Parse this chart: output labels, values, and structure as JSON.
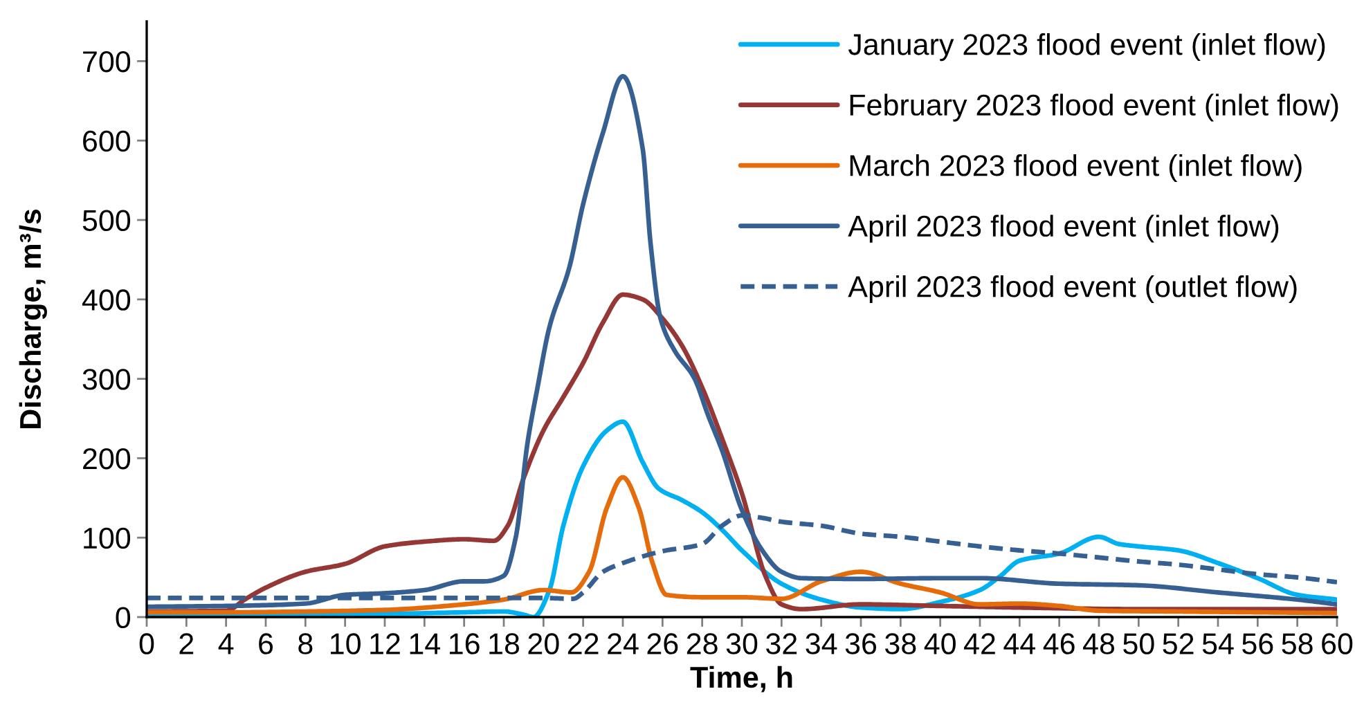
{
  "chart_data": {
    "type": "line",
    "xlabel": "Time, h",
    "ylabel": "Discharge, m³/s",
    "xlim": [
      0,
      60
    ],
    "xticks": [
      0,
      2,
      4,
      6,
      8,
      10,
      12,
      14,
      16,
      18,
      20,
      22,
      24,
      26,
      28,
      30,
      32,
      34,
      36,
      38,
      40,
      42,
      44,
      46,
      48,
      50,
      52,
      54,
      56,
      58,
      60
    ],
    "ylim": [
      0,
      750
    ],
    "yticks": [
      0,
      100,
      200,
      300,
      400,
      500,
      600,
      700
    ],
    "legend": "top right",
    "series": [
      {
        "name": "January 2023 flood event (inlet flow)",
        "color": "#00b0f0",
        "line_style": "solid",
        "x": [
          0,
          4,
          8,
          12,
          16,
          18,
          19,
          19.5,
          20.3,
          21,
          22,
          23.2,
          24,
          25,
          25.8,
          27,
          28,
          29,
          30,
          32,
          34,
          36,
          38,
          40,
          42,
          43,
          44,
          46,
          48,
          49,
          50,
          52,
          54,
          56,
          58,
          60
        ],
        "values": [
          2,
          2,
          3,
          4,
          6,
          7,
          3,
          0,
          34,
          115,
          190,
          235,
          246,
          195,
          162,
          147,
          132,
          110,
          84,
          42,
          22,
          12,
          10,
          19,
          34,
          51,
          71,
          80,
          101,
          92,
          89,
          84,
          68,
          49,
          28,
          22
        ]
      },
      {
        "name": "February 2023 flood event (inlet flow)",
        "color": "#953735",
        "line_style": "solid",
        "x": [
          0,
          4,
          5,
          6,
          8,
          10,
          12,
          14,
          16,
          17.5,
          18.2,
          19,
          20,
          21,
          22,
          23,
          24,
          25,
          26,
          27,
          28,
          29,
          30,
          31.2,
          32,
          33,
          36,
          40,
          44,
          50,
          60
        ],
        "values": [
          7,
          8,
          23,
          37,
          57,
          67,
          89,
          95,
          98,
          96,
          115,
          175,
          235,
          277,
          320,
          371,
          406,
          400,
          376,
          341,
          289,
          225,
          156,
          51,
          16,
          10,
          16,
          14,
          12,
          10,
          10
        ]
      },
      {
        "name": "March 2023 flood event (inlet flow)",
        "color": "#e46c0a",
        "line_style": "solid",
        "x": [
          0,
          4,
          8,
          12,
          16,
          18,
          20,
          21.4,
          22.3,
          23.2,
          24,
          24.8,
          25.5,
          26.2,
          28,
          30,
          32,
          34,
          36,
          38,
          40,
          42,
          44,
          46,
          48,
          52,
          56,
          60
        ],
        "values": [
          6,
          6,
          7,
          9,
          16,
          22,
          34,
          31,
          57,
          138,
          176,
          138,
          68,
          28,
          25,
          25,
          23,
          45,
          57,
          42,
          31,
          16,
          17,
          14,
          8,
          7,
          6,
          5
        ]
      },
      {
        "name": "April 2023 flood event (inlet flow)",
        "color": "#376092",
        "line_style": "solid",
        "x": [
          0,
          4,
          8,
          10,
          12,
          14,
          16,
          17,
          18,
          18.6,
          19.2,
          19.7,
          20.3,
          21.3,
          22,
          23,
          24,
          25,
          25.4,
          25.9,
          26.6,
          27.6,
          28.3,
          29,
          30,
          31,
          32,
          33,
          36,
          40,
          42,
          46,
          50,
          54,
          58,
          60
        ],
        "values": [
          13,
          14,
          17,
          28,
          30,
          34,
          45,
          45,
          52,
          100,
          220,
          289,
          365,
          440,
          520,
          610,
          681,
          590,
          470,
          376,
          336,
          301,
          254,
          210,
          135,
          85,
          57,
          49,
          48,
          49,
          49,
          42,
          40,
          31,
          22,
          16
        ]
      },
      {
        "name": "April 2023 flood event (outlet flow)",
        "color": "#376092",
        "line_style": "dashed",
        "x": [
          0,
          4,
          8,
          12,
          16,
          20,
          21.5,
          22,
          23,
          24,
          26,
          28,
          29,
          30,
          31,
          32,
          34,
          36,
          38,
          40,
          42,
          44,
          46,
          48,
          50,
          52,
          54,
          56,
          58,
          60
        ],
        "values": [
          24,
          24,
          24,
          24,
          24,
          24,
          23,
          31,
          57,
          68,
          83,
          92,
          115,
          128,
          125,
          120,
          115,
          105,
          101,
          95,
          89,
          84,
          80,
          75,
          70,
          66,
          60,
          54,
          50,
          44
        ]
      }
    ]
  }
}
